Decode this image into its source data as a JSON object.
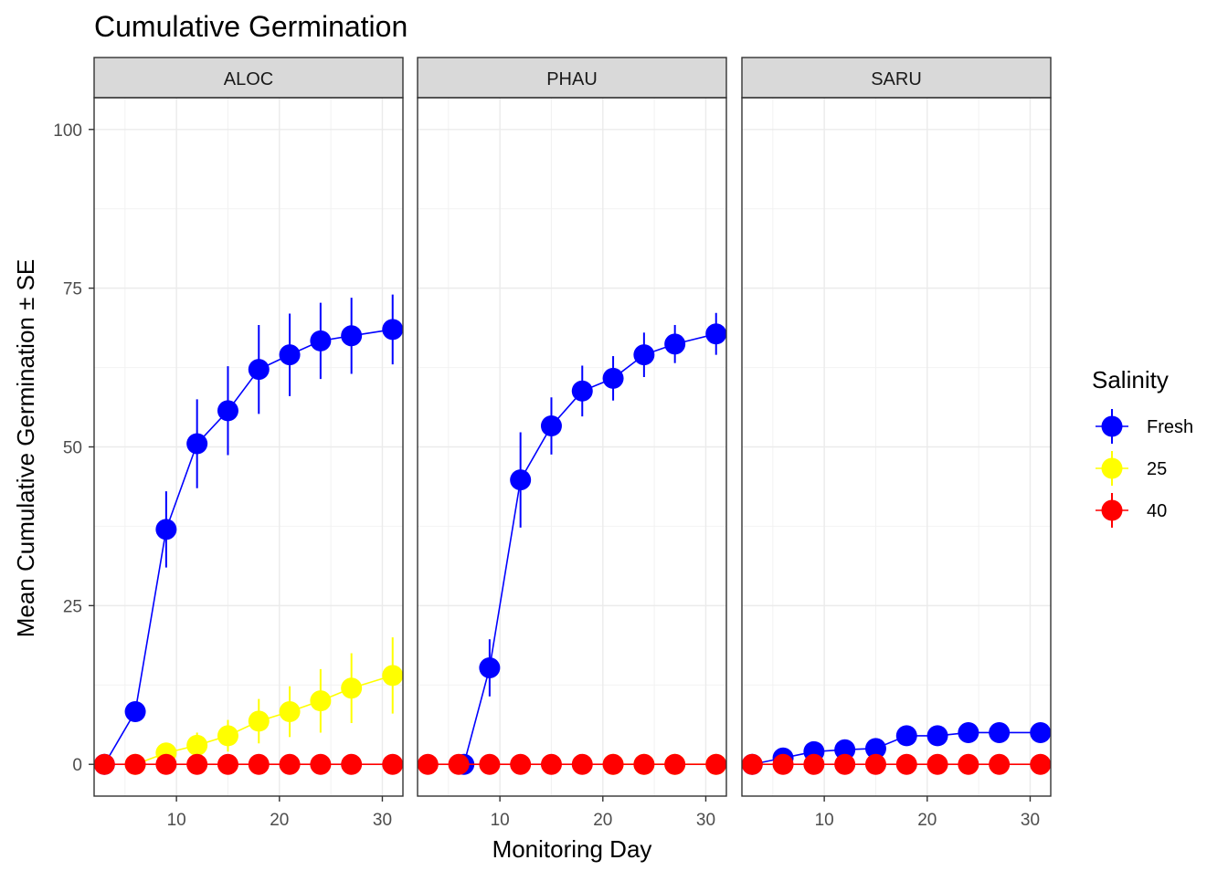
{
  "chart_data": {
    "type": "line",
    "title": "Cumulative Germination",
    "xlabel": "Monitoring Day",
    "ylabel": "Mean Cumulative Germination ± SE",
    "xlim": [
      2,
      32
    ],
    "ylim": [
      -5,
      105
    ],
    "x_ticks": [
      10,
      20,
      30
    ],
    "y_ticks": [
      0,
      25,
      50,
      75,
      100
    ],
    "grid": true,
    "legend": {
      "title": "Salinity",
      "placement": "right",
      "entries": [
        {
          "label": "Fresh",
          "color": "#0000ff"
        },
        {
          "label": "25",
          "color": "#ffff00"
        },
        {
          "label": "40",
          "color": "#ff0000"
        }
      ]
    },
    "panels": [
      {
        "label": "ALOC",
        "series": [
          {
            "name": "Fresh",
            "color": "#0000ff",
            "x": [
              3,
              6,
              9,
              12,
              15,
              18,
              21,
              24,
              27,
              31
            ],
            "y": [
              0,
              8.3,
              37,
              50.5,
              55.7,
              62.2,
              64.5,
              66.7,
              67.5,
              68.5
            ],
            "se": [
              0,
              0,
              6,
              7,
              7,
              7,
              6.5,
              6,
              6,
              5.5
            ]
          },
          {
            "name": "25",
            "color": "#ffff00",
            "x": [
              6,
              9,
              12,
              15,
              18,
              21,
              24,
              27,
              31
            ],
            "y": [
              0,
              1.8,
              3,
              4.5,
              6.8,
              8.3,
              10,
              12,
              14
            ],
            "se": [
              0,
              1.5,
              2,
              2.5,
              3.5,
              4,
              5,
              5.5,
              6
            ]
          },
          {
            "name": "40",
            "color": "#ff0000",
            "x": [
              3,
              6,
              9,
              12,
              15,
              18,
              21,
              24,
              27,
              31
            ],
            "y": [
              0,
              0,
              0,
              0,
              0,
              0,
              0,
              0,
              0,
              0
            ],
            "se": [
              0,
              0,
              0,
              0,
              0,
              0,
              0,
              0,
              0,
              0
            ]
          }
        ]
      },
      {
        "label": "PHAU",
        "series": [
          {
            "name": "Fresh",
            "color": "#0000ff",
            "x": [
              6.5,
              9,
              12,
              15,
              18,
              21,
              24,
              27,
              31
            ],
            "y": [
              0,
              15.2,
              44.8,
              53.3,
              58.8,
              60.8,
              64.5,
              66.2,
              67.8
            ],
            "se": [
              0,
              4.5,
              7.5,
              4.5,
              4,
              3.5,
              3.5,
              3,
              3.3
            ]
          },
          {
            "name": "25",
            "color": "#ffff00",
            "x": [
              21,
              24,
              27,
              31
            ],
            "y": [
              0,
              0,
              0,
              0
            ],
            "se": [
              0,
              0,
              0,
              0
            ]
          },
          {
            "name": "40",
            "color": "#ff0000",
            "x": [
              3,
              6,
              9,
              12,
              15,
              18,
              21,
              24,
              27,
              31
            ],
            "y": [
              0,
              0,
              0,
              0,
              0,
              0,
              0,
              0,
              0,
              0
            ],
            "se": [
              0,
              0,
              0,
              0,
              0,
              0,
              0,
              0,
              0,
              0
            ]
          }
        ]
      },
      {
        "label": "SARU",
        "series": [
          {
            "name": "Fresh",
            "color": "#0000ff",
            "x": [
              3,
              6,
              9,
              12,
              15,
              18,
              21,
              24,
              27,
              31
            ],
            "y": [
              0,
              1,
              2,
              2.3,
              2.5,
              4.5,
              4.5,
              5,
              5,
              5
            ],
            "se": [
              0,
              0,
              0,
              0,
              0,
              0,
              0,
              0,
              0,
              0
            ]
          },
          {
            "name": "40",
            "color": "#ff0000",
            "x": [
              3,
              6,
              9,
              12,
              15,
              18,
              21,
              24,
              27,
              31
            ],
            "y": [
              0,
              0,
              0,
              0,
              0,
              0,
              0,
              0,
              0,
              0
            ],
            "se": [
              0,
              0,
              0,
              0,
              0,
              0,
              0,
              0,
              0,
              0
            ]
          }
        ]
      }
    ]
  }
}
